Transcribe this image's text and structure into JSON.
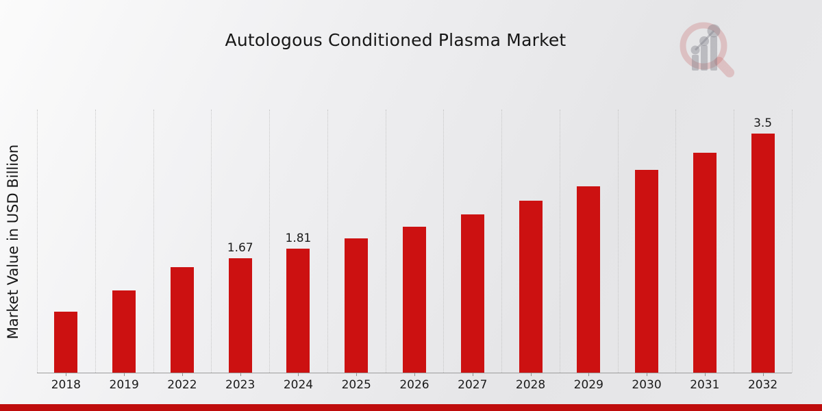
{
  "title": "Autologous Conditioned Plasma Market",
  "ylabel": "Market Value in USD Billion",
  "colors": {
    "bar": "#CC1111",
    "footer_band": "#BF0C0C",
    "gridline": "#C6C6C6",
    "axis": "#9C9C9C",
    "text": "#161616",
    "background_light": "#FBFBFB",
    "background_dark": "#E5E5E7",
    "watermark_pink": "rgba(196,90,90,0.26)",
    "watermark_gray": "rgba(125,125,135,0.40)"
  },
  "watermark": {
    "name": "magnifier-bar-chart-logo"
  },
  "chart_data": {
    "type": "bar",
    "title": "Autologous Conditioned Plasma Market",
    "xlabel": "",
    "ylabel": "Market Value in USD Billion",
    "categories": [
      "2018",
      "2019",
      "2022",
      "2023",
      "2024",
      "2025",
      "2026",
      "2027",
      "2028",
      "2029",
      "2030",
      "2031",
      "2032"
    ],
    "values": [
      0.89,
      1.2,
      1.54,
      1.67,
      1.81,
      1.97,
      2.14,
      2.32,
      2.52,
      2.73,
      2.97,
      3.22,
      3.5
    ],
    "data_labels": [
      "",
      "",
      "",
      "1.67",
      "1.81",
      "",
      "",
      "",
      "",
      "",
      "",
      "",
      "3.5"
    ],
    "bar_color": "#CC1111",
    "ylim": [
      0,
      3.85
    ],
    "grid": "vertical dotted lines at category boundaries",
    "legend": "none",
    "y_axis_ticks": "none"
  }
}
